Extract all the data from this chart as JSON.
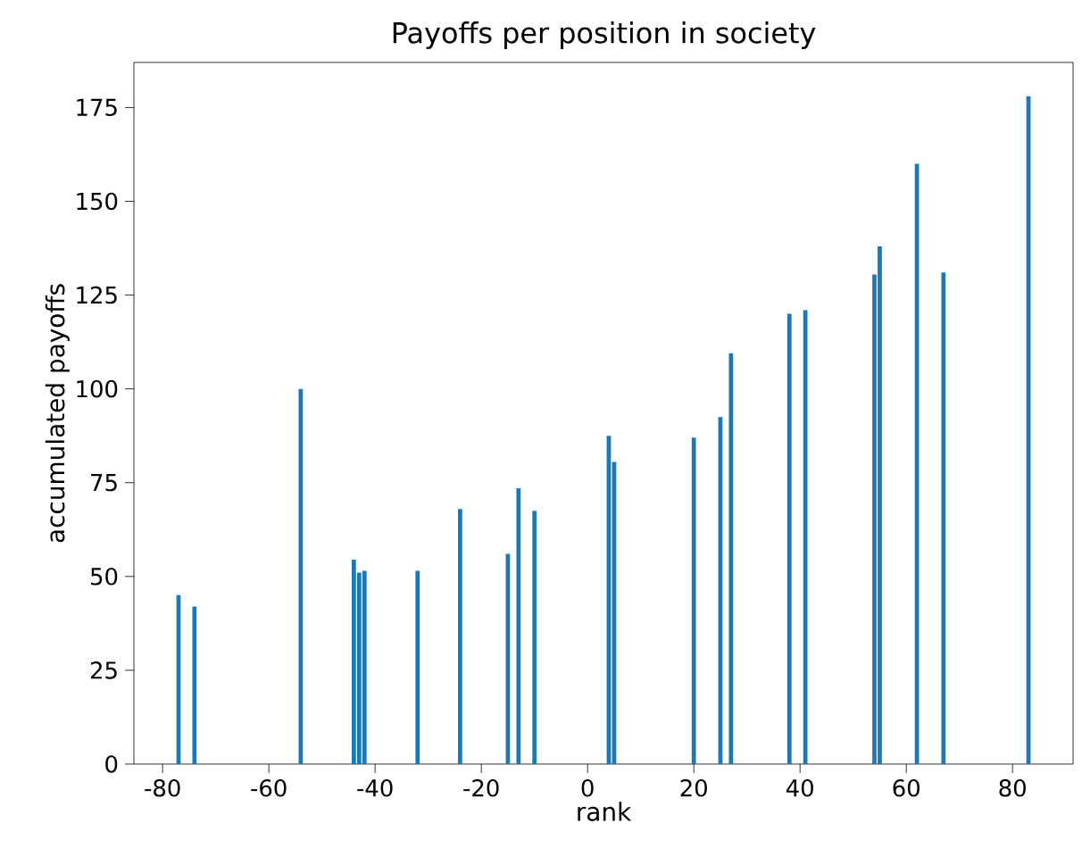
{
  "chart_data": {
    "type": "bar",
    "title": "Payoffs per position in society",
    "xlabel": "rank",
    "ylabel": "accumulated payoffs",
    "x": [
      -77,
      -74,
      -54,
      -44,
      -43,
      -42,
      -32,
      -24,
      -15,
      -13,
      -10,
      4,
      5,
      20,
      25,
      27,
      38,
      41,
      54,
      55,
      62,
      67,
      83
    ],
    "values": [
      45,
      42,
      100,
      54.5,
      51,
      51.5,
      51.5,
      68,
      56,
      73.5,
      67.5,
      87.5,
      80.5,
      87,
      92.5,
      109.5,
      120,
      121,
      130.5,
      138,
      160,
      131,
      178
    ],
    "color": "#1f77b4",
    "xlim": [
      -85.4,
      91.4
    ],
    "ylim": [
      0,
      187
    ],
    "xticks": [
      -80,
      -60,
      -40,
      -20,
      0,
      20,
      40,
      60,
      80
    ],
    "yticks": [
      0,
      25,
      50,
      75,
      100,
      125,
      150,
      175
    ]
  }
}
